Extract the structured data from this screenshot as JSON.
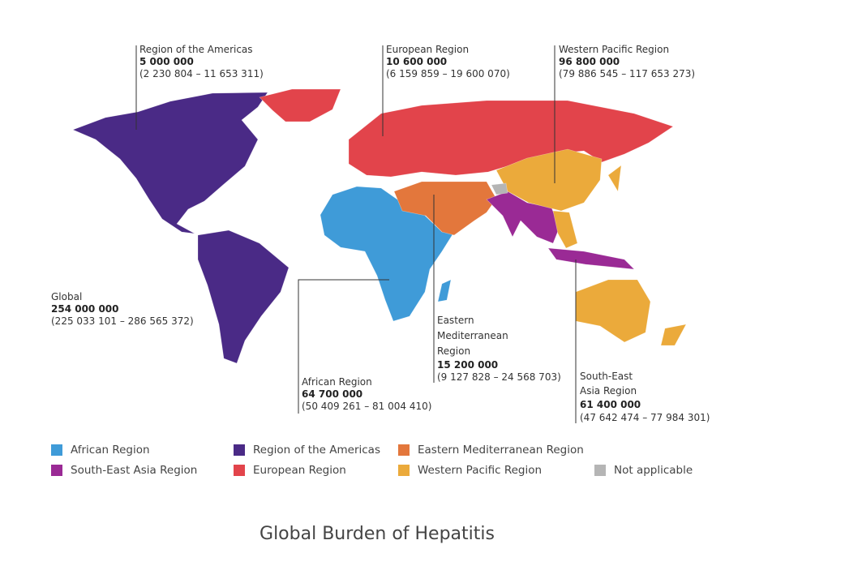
{
  "annotations": [
    {
      "name": "Region of the Americas",
      "value": "5 000 000",
      "range": "(2 230 804 – 11 653 311)"
    },
    {
      "name": "European Region",
      "value": "10 600 000",
      "range": "(6 159 859 – 19 600 070)"
    },
    {
      "name": "Western Pacific Region",
      "value": "96 800 000",
      "range": "(79 886 545 – 117 653 273)"
    },
    {
      "name": "Global",
      "value": "254 000 000",
      "range": "(225 033 101 – 286 565 372)"
    },
    {
      "name": "African Region",
      "value": "64 700 000",
      "range": "(50 409 261 – 81 004 410)"
    },
    {
      "name": "Eastern Mediterranean Region",
      "value": "15 200 000",
      "range": "(9 127 828 – 24 568 703)"
    },
    {
      "name": "South-East Asia Region",
      "value": "61 400 000",
      "range": "(47 642 474 – 77 984 301)"
    }
  ],
  "legend": {
    "items": [
      {
        "label": "African Region",
        "color": "#3f9bd8"
      },
      {
        "label": "Region of the Americas",
        "color": "#4a2a86"
      },
      {
        "label": "Eastern Mediterranean Region",
        "color": "#e3773c"
      },
      {
        "label": "South-East Asia Region",
        "color": "#9a2a95"
      },
      {
        "label": "European Region",
        "color": "#e2444b"
      },
      {
        "label": "Western Pacific Region",
        "color": "#ebaa3b"
      },
      {
        "label": "Not applicable",
        "color": "#b5b5b5"
      }
    ]
  },
  "caption": "Global Burden of Hepatitis"
}
